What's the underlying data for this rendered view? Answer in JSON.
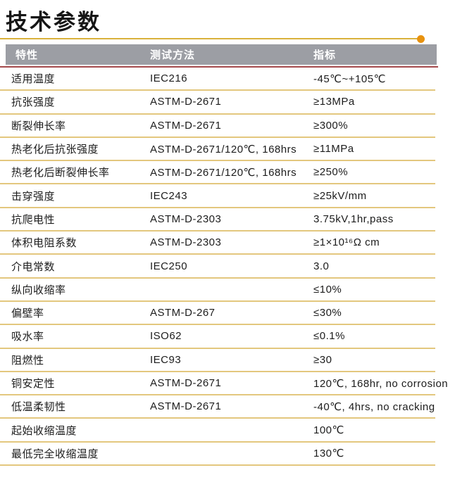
{
  "page": {
    "title": "技术参数"
  },
  "colors": {
    "header-gray": "#9c9ea4",
    "rule-gold": "#d9b13c",
    "dot-orange": "#e8920e",
    "line-red": "#a4494b",
    "sep-gold": "#e3c77e",
    "text-dark": "#1c1c1c"
  },
  "table": {
    "headers": [
      {
        "key": "property",
        "label": "特性"
      },
      {
        "key": "method",
        "label": "测试方法"
      },
      {
        "key": "value",
        "label": "指标"
      }
    ],
    "rows": [
      {
        "property": "适用温度",
        "method": "IEC216",
        "value": "-45℃~+105℃"
      },
      {
        "property": "抗张强度",
        "method": "ASTM-D-2671",
        "value": "≥13MPa"
      },
      {
        "property": "断裂伸长率",
        "method": "ASTM-D-2671",
        "value": "≥300%"
      },
      {
        "property": "热老化后抗张强度",
        "method": "ASTM-D-2671/120℃, 168hrs",
        "value": "≥11MPa"
      },
      {
        "property": "热老化后断裂伸长率",
        "method": "ASTM-D-2671/120℃, 168hrs",
        "value": "≥250%"
      },
      {
        "property": "击穿强度",
        "method": "IEC243",
        "value": "≥25kV/mm"
      },
      {
        "property": "抗爬电性",
        "method": "ASTM-D-2303",
        "value": "3.75kV,1hr,pass"
      },
      {
        "property": "体积电阻系数",
        "method": "ASTM-D-2303",
        "value": "≥1×10¹⁶Ω cm"
      },
      {
        "property": "介电常数",
        "method": "IEC250",
        "value": "3.0"
      },
      {
        "property": "纵向收缩率",
        "method": "",
        "value": "≤10%"
      },
      {
        "property": "偏壁率",
        "method": "ASTM-D-267",
        "value": "≤30%"
      },
      {
        "property": "吸水率",
        "method": "ISO62",
        "value": "≤0.1%"
      },
      {
        "property": "阻燃性",
        "method": "IEC93",
        "value": "≥30"
      },
      {
        "property": "铜安定性",
        "method": "ASTM-D-2671",
        "value": "120℃, 168hr, no corrosion"
      },
      {
        "property": "低温柔韧性",
        "method": "ASTM-D-2671",
        "value": "-40℃, 4hrs, no cracking"
      },
      {
        "property": "起始收缩温度",
        "method": "",
        "value": "100℃"
      },
      {
        "property": "最低完全收缩温度",
        "method": "",
        "value": "130℃"
      }
    ]
  }
}
